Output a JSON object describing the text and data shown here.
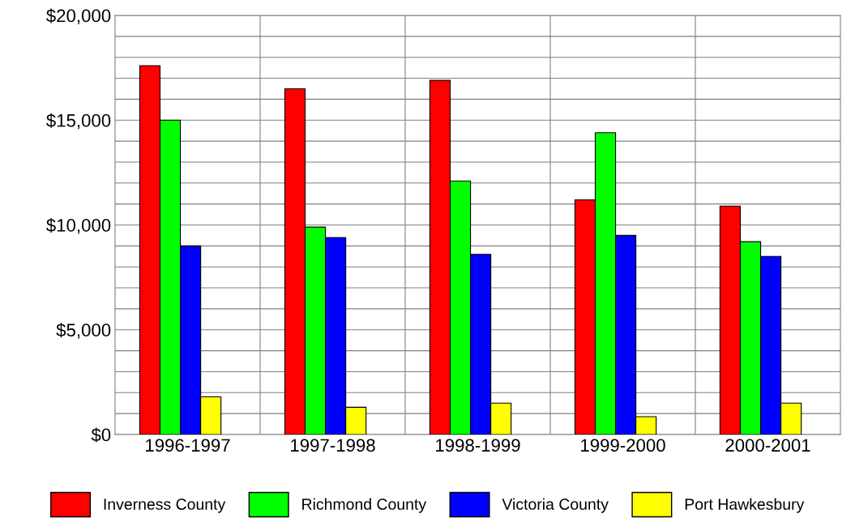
{
  "chart_data": {
    "type": "bar",
    "categories": [
      "1996-1997",
      "1997-1998",
      "1998-1999",
      "1999-2000",
      "2000-2001"
    ],
    "series": [
      {
        "name": "Inverness County",
        "color": "#ff0000",
        "values": [
          17600,
          16500,
          16900,
          11200,
          10900
        ]
      },
      {
        "name": "Richmond County",
        "color": "#00ff00",
        "values": [
          15000,
          9900,
          12100,
          14400,
          9200
        ]
      },
      {
        "name": "Victoria County",
        "color": "#0000ff",
        "values": [
          9000,
          9400,
          8600,
          9500,
          8500
        ]
      },
      {
        "name": "Port Hawkesbury",
        "color": "#ffff00",
        "values": [
          1800,
          1300,
          1500,
          850,
          1500
        ]
      }
    ],
    "ylim": [
      0,
      20000
    ],
    "yticks": [
      {
        "value": 0,
        "label": "$0"
      },
      {
        "value": 1000,
        "label": null
      },
      {
        "value": 2000,
        "label": null
      },
      {
        "value": 3000,
        "label": null
      },
      {
        "value": 4000,
        "label": null
      },
      {
        "value": 5000,
        "label": "$5,000"
      },
      {
        "value": 6000,
        "label": null
      },
      {
        "value": 7000,
        "label": null
      },
      {
        "value": 8000,
        "label": null
      },
      {
        "value": 9000,
        "label": null
      },
      {
        "value": 10000,
        "label": "$10,000"
      },
      {
        "value": 11000,
        "label": null
      },
      {
        "value": 12000,
        "label": null
      },
      {
        "value": 13000,
        "label": null
      },
      {
        "value": 14000,
        "label": null
      },
      {
        "value": 15000,
        "label": "$15,000"
      },
      {
        "value": 16000,
        "label": null
      },
      {
        "value": 17000,
        "label": null
      },
      {
        "value": 18000,
        "label": null
      },
      {
        "value": 19000,
        "label": null
      },
      {
        "value": 20000,
        "label": "$20,000"
      }
    ],
    "grid": true,
    "legend": "bottom"
  }
}
